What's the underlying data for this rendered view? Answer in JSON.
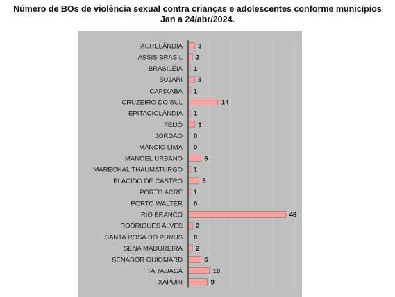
{
  "title_lines": [
    "Número de BOs de violência sexual contra crianças e adolescentes conforme municípios",
    "Jan a 24/abr/2024."
  ],
  "colors": {
    "bar": "#f4a3a3",
    "bar_stroke": "#b85a5a",
    "panel": "#bfbfbf",
    "grid": "#cfcfcf",
    "axis": "#222222"
  },
  "chart_data": {
    "type": "bar",
    "orientation": "horizontal",
    "title": "Número de BOs de violência sexual contra crianças e adolescentes conforme municípios Jan a 24/abr/2024.",
    "xlabel": "",
    "ylabel": "",
    "grid": true,
    "legend": "none",
    "xlim": [
      0,
      50
    ],
    "categories": [
      "ACRELÂNDIA",
      "ASSIS BRASIL",
      "BRASILÉIA",
      "BUJARI",
      "CAPIXABA",
      "CRUZEIRO DO SUL",
      "EPITACIOLÂNDIA",
      "FEIJÓ",
      "JORDÃO",
      "MÂNCIO LIMA",
      "MANOEL URBANO",
      "MARECHAL THAUMATURGO",
      "PLÁCIDO DE CASTRO",
      "PORTO ACRE",
      "PORTO WALTER",
      "RIO BRANCO",
      "RODRIGUES ALVES",
      "SANTA ROSA DO PURUS",
      "SENA MADUREIRA",
      "SENADOR GUIOMARD",
      "TARAUACÁ",
      "XAPURI"
    ],
    "values": [
      3,
      2,
      1,
      3,
      1,
      14,
      1,
      3,
      0,
      0,
      6,
      1,
      5,
      1,
      0,
      46,
      2,
      0,
      2,
      6,
      10,
      9
    ]
  }
}
